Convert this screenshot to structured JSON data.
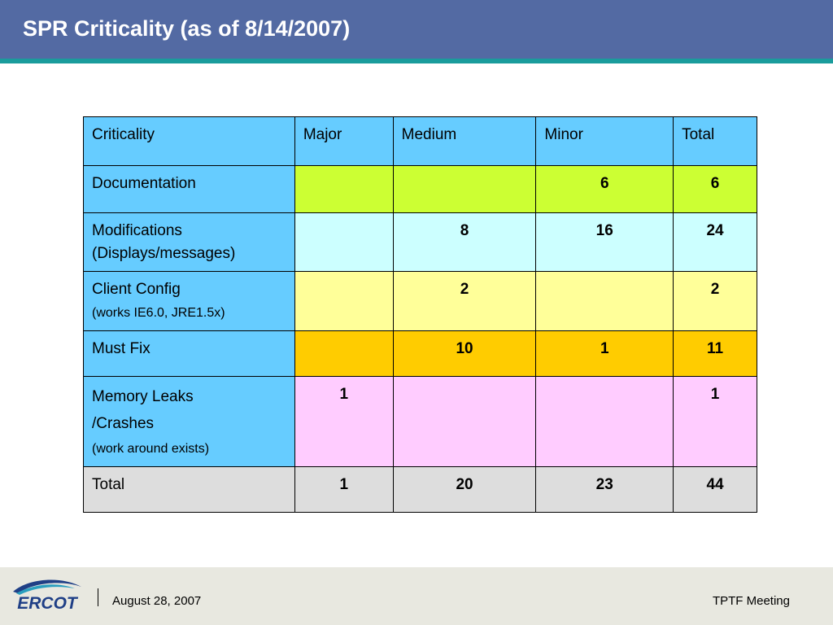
{
  "title": "SPR Criticality (as of 8/14/2007)",
  "colors": {
    "title_bar": "#536aa3",
    "title_underline": "#1a9c9c",
    "label_column": "#66ccff",
    "documentation_row": "#ccff33",
    "modifications_row": "#ccffff",
    "client_config_row": "#ffff99",
    "must_fix_row": "#ffcc00",
    "memory_leaks_row": "#ffccff",
    "total_row": "#dddddd",
    "footer": "#e8e8e0"
  },
  "table": {
    "headers": [
      "Criticality",
      "Major",
      "Medium",
      "Minor",
      "Total"
    ],
    "rows": [
      {
        "label_lines": [
          "Documentation"
        ],
        "note": "",
        "major": "",
        "medium": "",
        "minor": "6",
        "total": "6"
      },
      {
        "label_lines": [
          "Modifications",
          "(Displays/messages)"
        ],
        "note": "",
        "major": "",
        "medium": "8",
        "minor": "16",
        "total": "24"
      },
      {
        "label_lines": [
          "Client Config"
        ],
        "note": "(works IE6.0, JRE1.5x)",
        "major": "",
        "medium": "2",
        "minor": "",
        "total": "2"
      },
      {
        "label_lines": [
          "Must Fix"
        ],
        "note": "",
        "major": "",
        "medium": "10",
        "minor": "1",
        "total": "11"
      },
      {
        "label_lines": [
          "Memory Leaks",
          "/Crashes"
        ],
        "note": "(work around exists)",
        "major": "1",
        "medium": "",
        "minor": "",
        "total": "1"
      }
    ],
    "total_row": {
      "label": "Total",
      "major": "1",
      "medium": "20",
      "minor": "23",
      "total": "44"
    }
  },
  "footer": {
    "logo_text": "ERCOT",
    "date": "August 28, 2007",
    "meeting": "TPTF Meeting"
  }
}
